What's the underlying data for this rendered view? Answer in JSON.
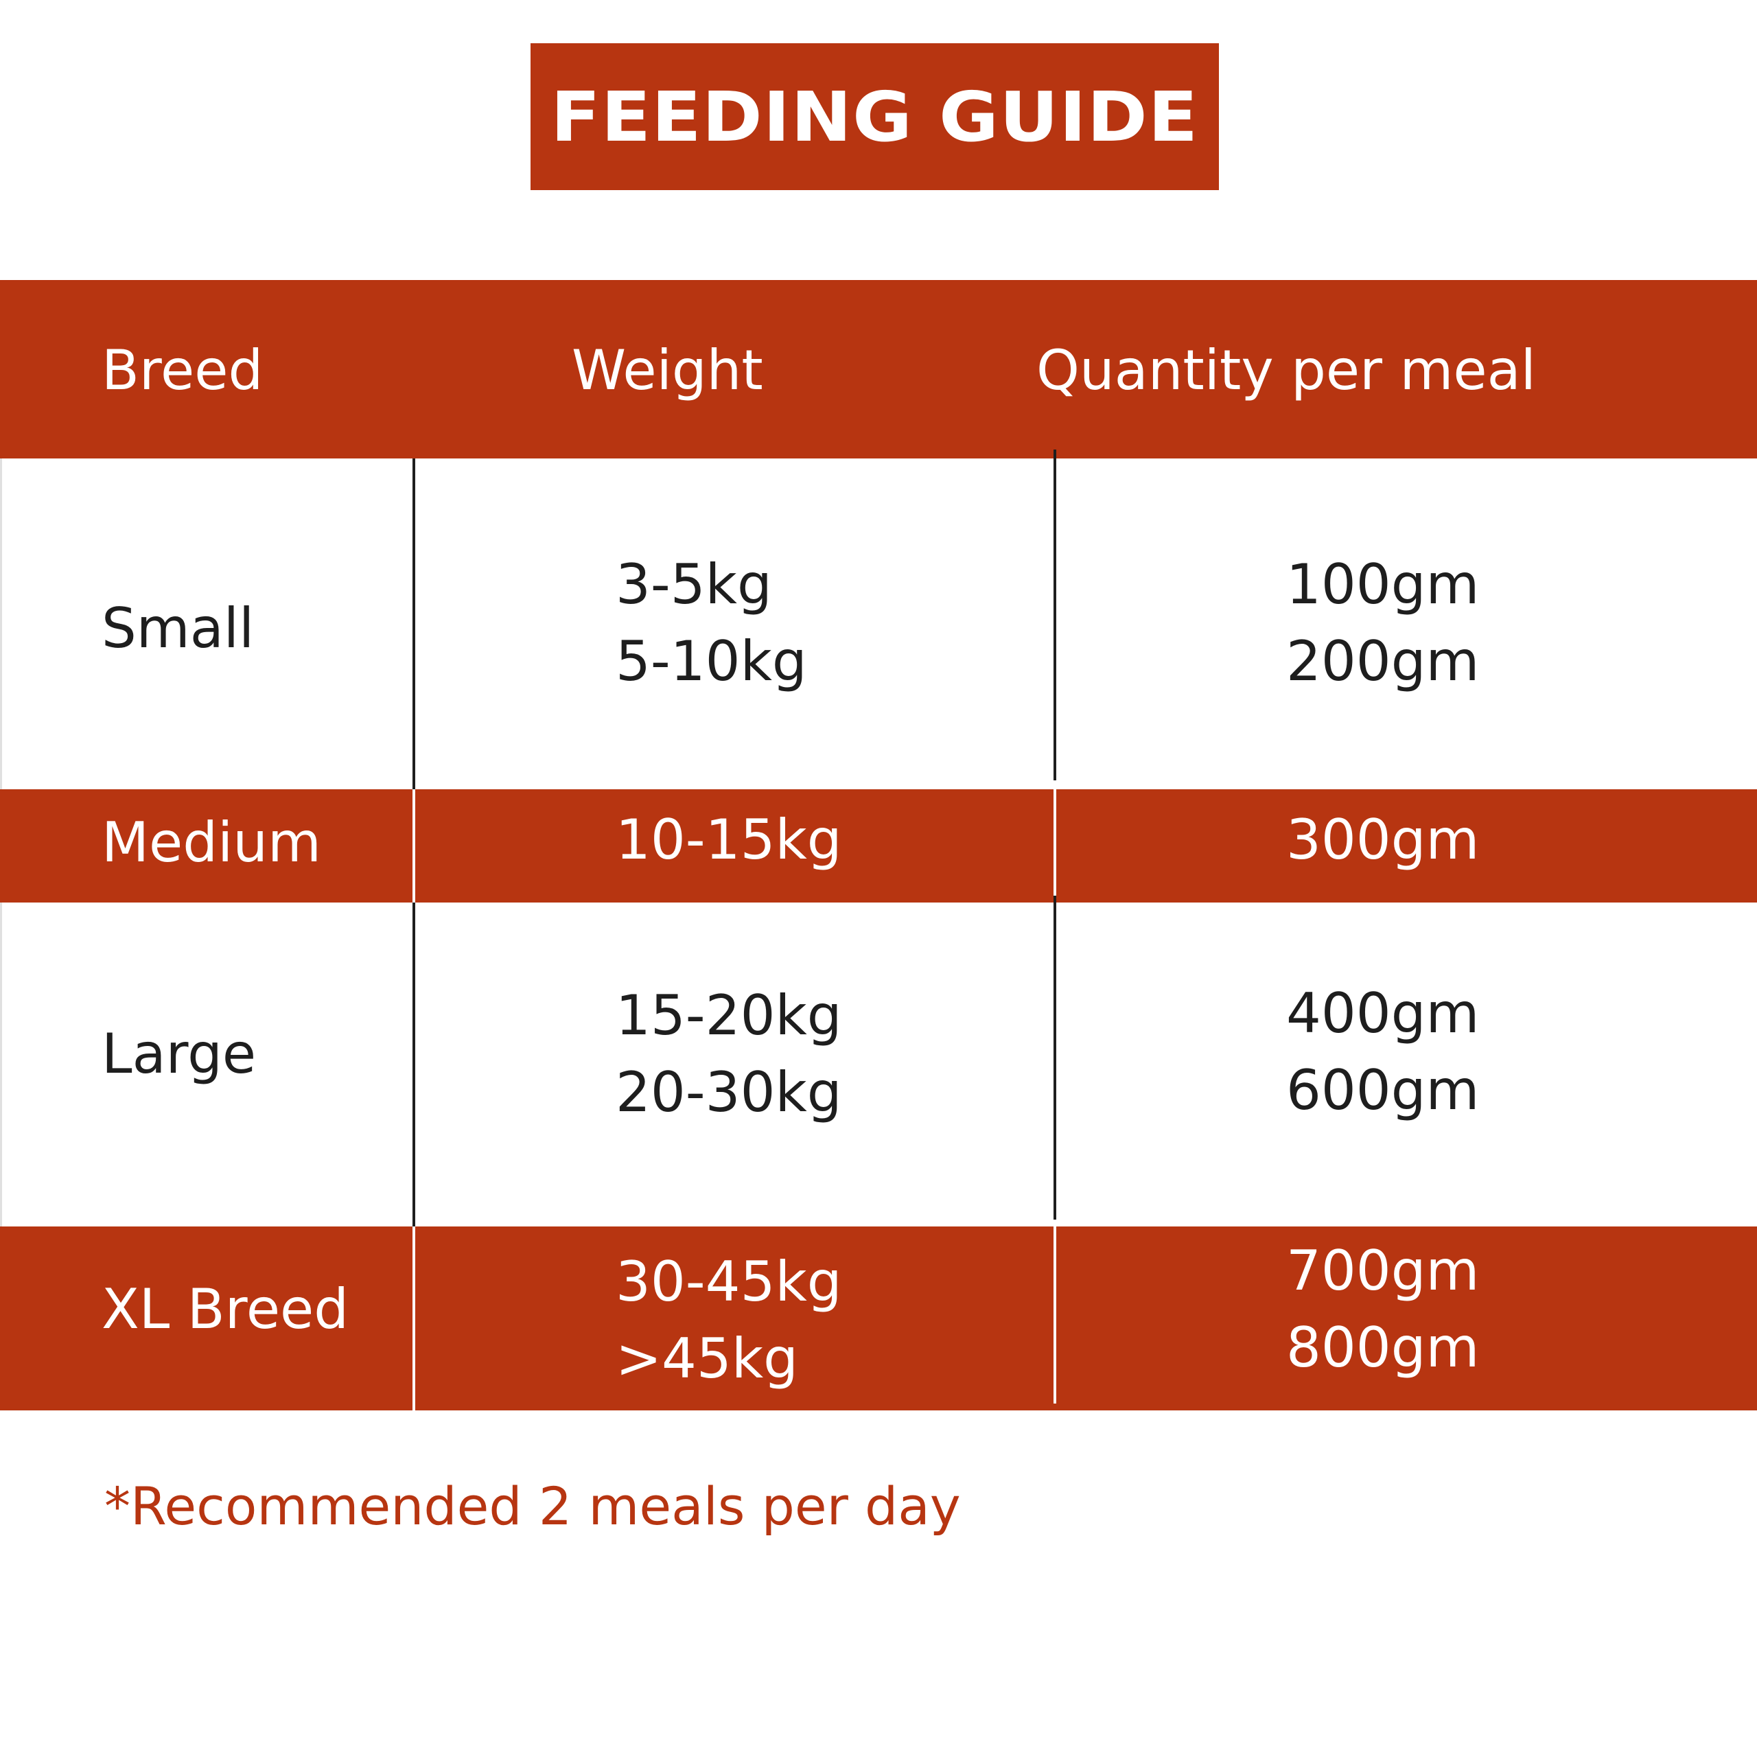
{
  "title": "FEEDING GUIDE",
  "table": {
    "headers": [
      "Breed",
      "Weight",
      "Quantity per meal"
    ],
    "rows": [
      {
        "breed": "Small",
        "weight": [
          "3-5kg",
          "5-10kg"
        ],
        "quantity": [
          "100gm",
          "200gm"
        ]
      },
      {
        "breed": "Medium",
        "weight": [
          "10-15kg"
        ],
        "quantity": [
          "300gm"
        ]
      },
      {
        "breed": "Large",
        "weight": [
          "15-20kg",
          "20-30kg"
        ],
        "quantity": [
          "400gm",
          "600gm"
        ]
      },
      {
        "breed": "XL Breed",
        "weight": [
          "30-45kg",
          ">45kg"
        ],
        "quantity": [
          "700gm",
          "800gm"
        ]
      }
    ]
  },
  "footnote": "*Recommended 2 meals per day",
  "colors": {
    "accent": "#b73511",
    "text_dark": "#1e1e1e",
    "text_light": "#ffffff",
    "background": "#ffffff"
  }
}
